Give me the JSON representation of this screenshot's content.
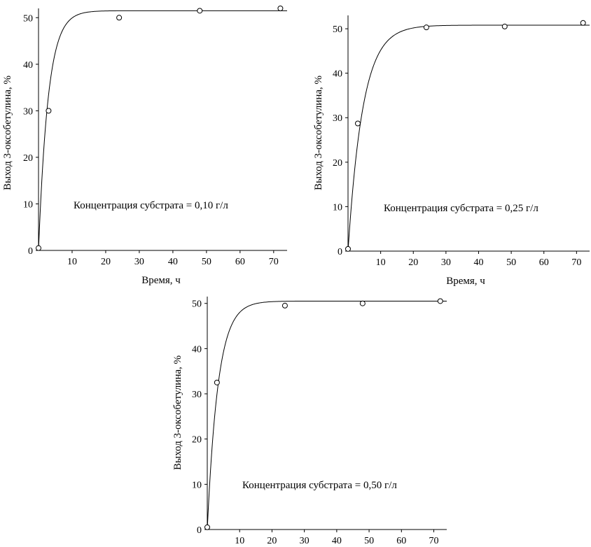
{
  "chart_data": [
    {
      "type": "scatter",
      "xlabel": "Время, ч",
      "ylabel": "Выход 3-оксобетулина, %",
      "annotation": "Концентрация субстрата = 0,10 г/л",
      "xlim": [
        0,
        74
      ],
      "ylim": [
        0,
        52
      ],
      "xticks": [
        10,
        20,
        30,
        40,
        50,
        60,
        70
      ],
      "yticks": [
        0,
        10,
        20,
        30,
        40,
        50
      ],
      "points": {
        "x": [
          0,
          3,
          24,
          48,
          72
        ],
        "y": [
          0.5,
          30,
          50,
          51.5,
          52
        ]
      },
      "fit": {
        "plateau": 51.5,
        "rate": 0.35,
        "x_max": 74
      }
    },
    {
      "type": "scatter",
      "xlabel": "Время, ч",
      "ylabel": "Выход 3-оксобетулина, %",
      "annotation": "Концентрация субстрата = 0,25 г/л",
      "xlim": [
        0,
        74
      ],
      "ylim": [
        0,
        53
      ],
      "xticks": [
        10,
        20,
        30,
        40,
        50,
        60,
        70
      ],
      "yticks": [
        0,
        10,
        20,
        30,
        40,
        50
      ],
      "points": {
        "x": [
          0,
          3,
          24,
          48,
          72
        ],
        "y": [
          0.5,
          28.7,
          50.3,
          50.5,
          51.3
        ]
      },
      "fit": {
        "plateau": 50.8,
        "rate": 0.22,
        "x_max": 74
      }
    },
    {
      "type": "scatter",
      "xlabel": "",
      "ylabel": "Выход 3-оксобетулина, %",
      "annotation": "Концентрация субстрата = 0,50 г/л",
      "xlim": [
        0,
        74
      ],
      "ylim": [
        0,
        51.5
      ],
      "xticks": [
        10,
        20,
        30,
        40,
        50,
        60,
        70
      ],
      "yticks": [
        0,
        10,
        20,
        30,
        40,
        50
      ],
      "points": {
        "x": [
          0,
          3,
          24,
          48,
          72
        ],
        "y": [
          0.5,
          32.5,
          49.5,
          50,
          50.5
        ]
      },
      "fit": {
        "plateau": 50.5,
        "rate": 0.3,
        "x_max": 74
      }
    }
  ]
}
